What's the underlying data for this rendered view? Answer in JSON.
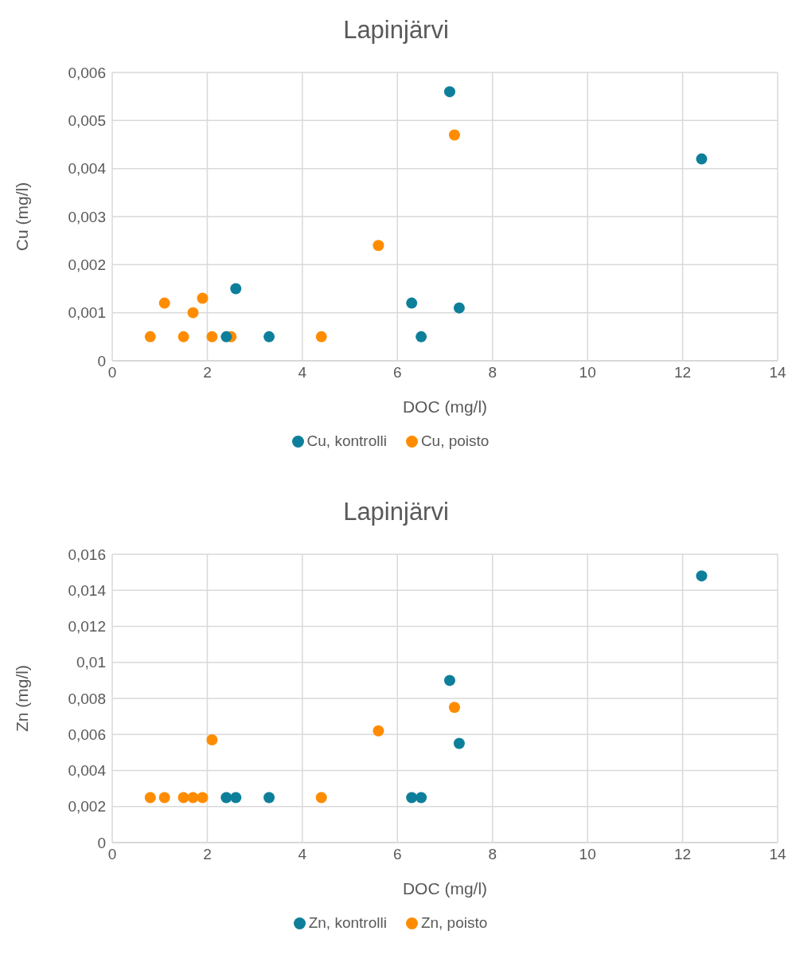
{
  "chart_data": [
    {
      "type": "scatter",
      "title": "Lapinjärvi",
      "xlabel": "DOC (mg/l)",
      "ylabel": "Cu (mg/l)",
      "xlim": [
        0,
        14
      ],
      "xticks": [
        0,
        2,
        4,
        6,
        8,
        10,
        12,
        14
      ],
      "ylim": [
        0,
        0.006
      ],
      "yticks": [
        0,
        {
          "value": 0.001,
          "label": "0,001"
        },
        {
          "value": 0.002,
          "label": "0,002"
        },
        {
          "value": 0.003,
          "label": "0,003"
        },
        {
          "value": 0.004,
          "label": "0,004"
        },
        {
          "value": 0.005,
          "label": "0,005"
        },
        {
          "value": 0.006,
          "label": "0,006"
        }
      ],
      "grid": true,
      "legend": "bottom",
      "marker": "circle",
      "series": [
        {
          "name": "Cu, poisto",
          "color": "#ff8c00",
          "x": [
            0.8,
            1.1,
            1.5,
            1.7,
            1.9,
            2.1,
            2.5,
            4.4,
            5.6,
            7.2
          ],
          "values": [
            0.0005,
            0.0012,
            0.0005,
            0.001,
            0.0013,
            0.0005,
            0.0005,
            0.0005,
            0.0024,
            0.0047
          ]
        },
        {
          "name": "Cu, kontrolli",
          "color": "#0e7f9a",
          "x": [
            2.4,
            2.6,
            3.3,
            6.3,
            6.5,
            7.1,
            7.3,
            12.4
          ],
          "values": [
            0.0005,
            0.0015,
            0.0005,
            0.0012,
            0.0005,
            0.0056,
            0.0011,
            0.0042
          ]
        }
      ]
    },
    {
      "type": "scatter",
      "title": "Lapinjärvi",
      "xlabel": "DOC (mg/l)",
      "ylabel": "Zn (mg/l)",
      "xlim": [
        0,
        14
      ],
      "xticks": [
        0,
        2,
        4,
        6,
        8,
        10,
        12,
        14
      ],
      "ylim": [
        0,
        0.016
      ],
      "yticks": [
        0,
        {
          "value": 0.002,
          "label": "0,002"
        },
        {
          "value": 0.004,
          "label": "0,004"
        },
        {
          "value": 0.006,
          "label": "0,006"
        },
        {
          "value": 0.008,
          "label": "0,008"
        },
        {
          "value": 0.01,
          "label": "0,01"
        },
        {
          "value": 0.012,
          "label": "0,012"
        },
        {
          "value": 0.014,
          "label": "0,014"
        },
        {
          "value": 0.016,
          "label": "0,016"
        }
      ],
      "grid": true,
      "legend": "bottom",
      "marker": "circle",
      "series": [
        {
          "name": "Zn, poisto",
          "color": "#ff8c00",
          "x": [
            0.8,
            1.1,
            1.5,
            1.7,
            1.9,
            2.1,
            2.5,
            4.4,
            5.6,
            7.2
          ],
          "values": [
            0.0025,
            0.0025,
            0.0025,
            0.0025,
            0.0025,
            0.0057,
            null,
            0.0025,
            0.0062,
            0.0075
          ]
        },
        {
          "name": "Zn, kontrolli",
          "color": "#0e7f9a",
          "x": [
            2.4,
            2.6,
            3.3,
            6.3,
            6.5,
            7.1,
            7.3,
            12.4
          ],
          "values": [
            0.0025,
            0.0025,
            0.0025,
            0.0025,
            0.0025,
            0.009,
            0.0055,
            0.0148
          ]
        }
      ]
    }
  ]
}
